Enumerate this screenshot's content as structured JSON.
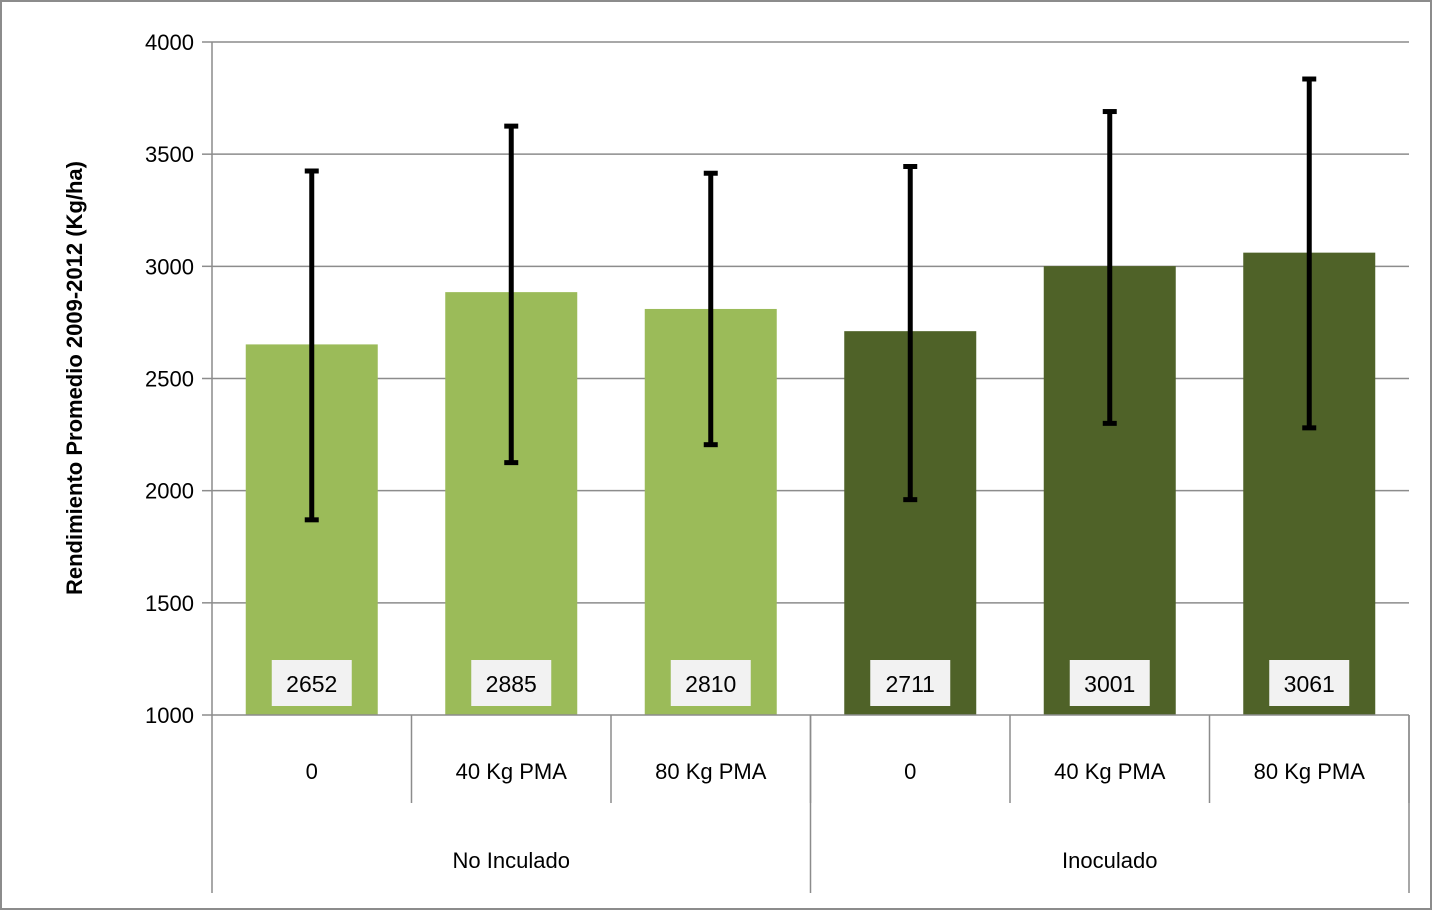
{
  "chart_data": {
    "type": "bar",
    "ylabel": "Rendimiento Promedio 2009-2012 (Kg/ha)",
    "ylim": [
      1000,
      4000
    ],
    "yticks": [
      1000,
      1500,
      2000,
      2500,
      3000,
      3500,
      4000
    ],
    "grid": true,
    "legend": "none",
    "categories": [
      "0",
      "40 Kg PMA",
      "80 Kg PMA",
      "0",
      "40 Kg PMA",
      "80 Kg PMA"
    ],
    "groups": [
      {
        "label": "No Inculado",
        "span": 3,
        "color": "#9bbb59"
      },
      {
        "label": "Inoculado",
        "span": 3,
        "color": "#4f6228"
      }
    ],
    "values": [
      2652,
      2885,
      2810,
      2711,
      3001,
      3061
    ],
    "error_low": [
      1870,
      2125,
      2205,
      1960,
      2300,
      2280
    ],
    "error_high": [
      3425,
      3625,
      3415,
      3445,
      3690,
      3835
    ],
    "colors": [
      "#9bbb59",
      "#9bbb59",
      "#9bbb59",
      "#4f6228",
      "#4f6228",
      "#4f6228"
    ],
    "error_bar_color": "#000000",
    "gridline_color": "#8c8c8c"
  }
}
